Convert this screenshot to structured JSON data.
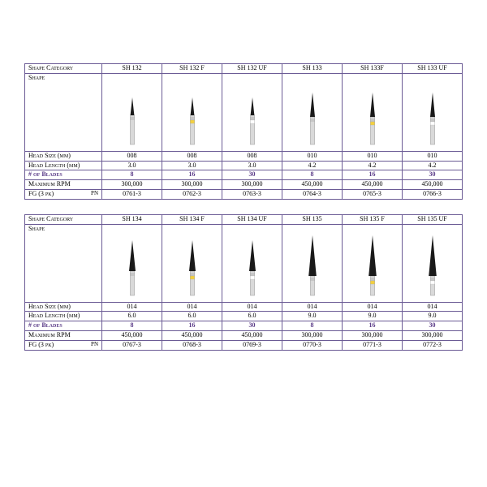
{
  "colors": {
    "border": "#6b5b95",
    "purple": "#5b3c88",
    "shank": "#d9d9d9",
    "blade": "#1a1a1a",
    "yellow": "#f4d03f",
    "white": "#ffffff",
    "band": "#c0c0c0"
  },
  "labels": {
    "shapeCategory": "Shape Category",
    "shape": "Shape",
    "headSize": "Head Size (mm)",
    "headLength": "Head Length (mm)",
    "blades": "# of Blades",
    "maxRpm": "Maximum RPM",
    "fg": "FG (3 pk)",
    "pn": "PN"
  },
  "tables": [
    {
      "columns": [
        {
          "code": "SH 132",
          "headSize": "008",
          "headLength": "3.0",
          "blades": "8",
          "rpm": "300,000",
          "pn": "0761-3",
          "band": "none",
          "len": "short"
        },
        {
          "code": "SH 132 F",
          "headSize": "008",
          "headLength": "3.0",
          "blades": "16",
          "rpm": "300,000",
          "pn": "0762-3",
          "band": "yellow",
          "len": "short"
        },
        {
          "code": "SH 132 UF",
          "headSize": "008",
          "headLength": "3.0",
          "blades": "30",
          "rpm": "300,000",
          "pn": "0763-3",
          "band": "white",
          "len": "short"
        },
        {
          "code": "SH 133",
          "headSize": "010",
          "headLength": "4.2",
          "blades": "8",
          "rpm": "450,000",
          "pn": "0764-3",
          "band": "none",
          "len": "med"
        },
        {
          "code": "SH 133F",
          "headSize": "010",
          "headLength": "4.2",
          "blades": "16",
          "rpm": "450,000",
          "pn": "0765-3",
          "band": "yellow",
          "len": "med"
        },
        {
          "code": "SH 133 UF",
          "headSize": "010",
          "headLength": "4.2",
          "blades": "30",
          "rpm": "450,000",
          "pn": "0766-3",
          "band": "white",
          "len": "med"
        }
      ]
    },
    {
      "columns": [
        {
          "code": "SH 134",
          "headSize": "014",
          "headLength": "6.0",
          "blades": "8",
          "rpm": "450,000",
          "pn": "0767-3",
          "band": "none",
          "len": "long"
        },
        {
          "code": "SH 134 F",
          "headSize": "014",
          "headLength": "6.0",
          "blades": "16",
          "rpm": "450,000",
          "pn": "0768-3",
          "band": "yellow",
          "len": "long"
        },
        {
          "code": "SH 134 UF",
          "headSize": "014",
          "headLength": "6.0",
          "blades": "30",
          "rpm": "450,000",
          "pn": "0769-3",
          "band": "white",
          "len": "long"
        },
        {
          "code": "SH 135",
          "headSize": "014",
          "headLength": "9.0",
          "blades": "8",
          "rpm": "300,000",
          "pn": "0770-3",
          "band": "none",
          "len": "xlong"
        },
        {
          "code": "SH 135 F",
          "headSize": "014",
          "headLength": "9.0",
          "blades": "16",
          "rpm": "300,000",
          "pn": "0771-3",
          "band": "yellow",
          "len": "xlong"
        },
        {
          "code": "SH 135 UF",
          "headSize": "014",
          "headLength": "9.0",
          "blades": "30",
          "rpm": "300,000",
          "pn": "0772-3",
          "band": "white",
          "len": "xlong"
        }
      ]
    }
  ],
  "burGeometry": {
    "short": {
      "shankH": 36,
      "bladeH": 22,
      "halfW": 2.4
    },
    "med": {
      "shankH": 34,
      "bladeH": 30,
      "halfW": 3.0
    },
    "long": {
      "shankH": 30,
      "bladeH": 38,
      "halfW": 4.0
    },
    "xlong": {
      "shankH": 24,
      "bladeH": 50,
      "halfW": 4.8
    }
  }
}
